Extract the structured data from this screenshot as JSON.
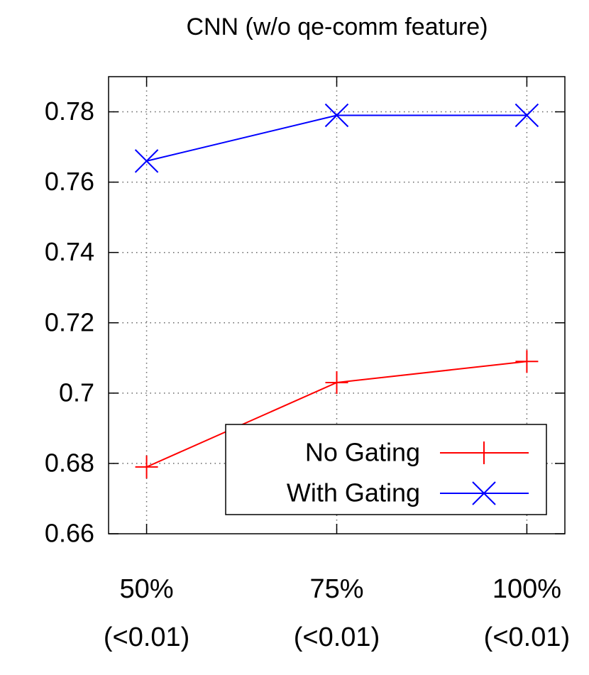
{
  "chart_data": {
    "type": "line",
    "title": "CNN (w/o qe-comm feature)",
    "categories": [
      [
        "50%",
        "(<0.01)"
      ],
      [
        "75%",
        "(<0.01)"
      ],
      [
        "100%",
        "(<0.01)"
      ]
    ],
    "series": [
      {
        "name": "No Gating",
        "color": "#ff0000",
        "marker": "plus",
        "values": [
          0.679,
          0.703,
          0.709
        ]
      },
      {
        "name": "With Gating",
        "color": "#0000ff",
        "marker": "cross",
        "values": [
          0.766,
          0.779,
          0.779
        ]
      }
    ],
    "ylim": [
      0.66,
      0.79
    ],
    "yticks": [
      0.66,
      0.68,
      0.7,
      0.72,
      0.74,
      0.76,
      0.78
    ],
    "grid": true,
    "legend": "lower right"
  }
}
